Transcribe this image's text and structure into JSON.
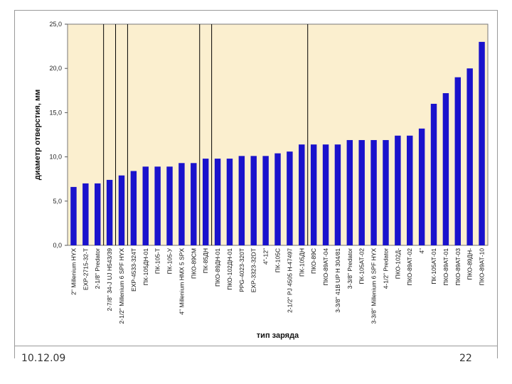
{
  "slide": {
    "date": "10.12.09",
    "page_number": "22"
  },
  "chart_data": {
    "type": "bar",
    "xlabel": "тип заряда",
    "ylabel": "диаметр отверстия, мм",
    "ylim": [
      0,
      25
    ],
    "yticks": [
      "0,0",
      "5,0",
      "10,0",
      "15,0",
      "20,0",
      "25,0"
    ],
    "grid": false,
    "plot_background": "#fbefcf",
    "bar_color": "#1a12cc",
    "categories": [
      "2\" Millenium HYX",
      "EXP-2715-32-T",
      "2-1/8\" Predator",
      "2-7/8\" 34-J UJ H543/39",
      "2-1/2\" Millenium 6 SPF HYX",
      "EXP-4533-324T",
      "ПК-105ДН-01",
      "ПК-105-Т",
      "ПК-105-У",
      "4\" Millenium HMX 5 SPX",
      "ПКО-89СМ",
      "ПК-85ДН",
      "ПКО-89ДН-01",
      "ПКО-102ДН-01",
      "PPG-4023-320T",
      "EXP-3323-32DT",
      "4\"-12\"",
      "ПК-105С",
      "2-1/2\" PJ 4505 H-47497",
      "ПК-105ДН",
      "ПКО-89С",
      "ПКО-89АТ-04",
      "3-3/8\" 41B UP H 304/81",
      "3-3/8\" Predator",
      "ПК-105АТ-02",
      "3-3/8\" Millenium 6 SPF HYX",
      "4-1/2\" Predator",
      "ПКО-102Д-",
      "ПКО-89АТ-02",
      "4\"",
      "ПК-105АТ-01",
      "ПКО-89АТ-01",
      "ПКО-89АТ-03",
      "ПКО-89ДН-",
      "ПКО-89АТ-10"
    ],
    "values": [
      6.6,
      7.0,
      7.0,
      7.4,
      7.9,
      8.4,
      8.9,
      8.9,
      8.9,
      9.3,
      9.3,
      9.8,
      9.8,
      9.8,
      10.1,
      10.1,
      10.1,
      10.4,
      10.6,
      11.4,
      11.4,
      11.4,
      11.4,
      11.9,
      11.9,
      11.9,
      11.9,
      12.4,
      12.4,
      13.2,
      16.0,
      17.2,
      19.0,
      20.0,
      23.0
    ],
    "divider_lines_after_category_index": [
      2,
      3,
      4,
      10,
      11,
      19
    ]
  }
}
